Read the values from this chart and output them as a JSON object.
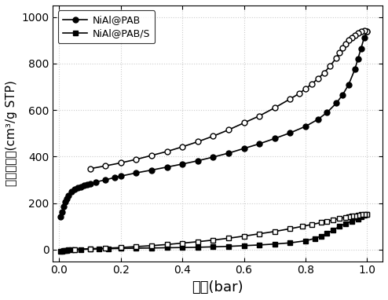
{
  "xlabel": "压力(bar)",
  "ylabel": "氮气吸附量(cm³/g STP)",
  "xlim": [
    -0.02,
    1.05
  ],
  "ylim": [
    -50,
    1050
  ],
  "yticks": [
    0,
    200,
    400,
    600,
    800,
    1000
  ],
  "xticks": [
    0.0,
    0.2,
    0.4,
    0.6,
    0.8,
    1.0
  ],
  "legend1": "NiAl@PAB",
  "legend2": "NiAl@PAB/S",
  "PAB_adsorption_x": [
    0.005,
    0.01,
    0.015,
    0.02,
    0.025,
    0.03,
    0.04,
    0.05,
    0.06,
    0.07,
    0.08,
    0.09,
    0.1,
    0.12,
    0.15,
    0.18,
    0.2,
    0.25,
    0.3,
    0.35,
    0.4,
    0.45,
    0.5,
    0.55,
    0.6,
    0.65,
    0.7,
    0.75,
    0.8,
    0.84,
    0.87,
    0.9,
    0.92,
    0.94,
    0.96,
    0.97,
    0.98,
    0.99,
    1.0
  ],
  "PAB_adsorption_y": [
    140,
    160,
    185,
    207,
    220,
    232,
    248,
    258,
    265,
    270,
    275,
    279,
    283,
    291,
    300,
    310,
    316,
    330,
    342,
    355,
    368,
    382,
    398,
    415,
    435,
    455,
    478,
    502,
    530,
    560,
    590,
    630,
    665,
    710,
    775,
    820,
    865,
    910,
    940
  ],
  "PAB_desorption_x": [
    1.0,
    0.99,
    0.98,
    0.97,
    0.96,
    0.95,
    0.94,
    0.93,
    0.92,
    0.91,
    0.9,
    0.88,
    0.86,
    0.84,
    0.82,
    0.8,
    0.78,
    0.75,
    0.7,
    0.65,
    0.6,
    0.55,
    0.5,
    0.45,
    0.4,
    0.35,
    0.3,
    0.25,
    0.2,
    0.15,
    0.1
  ],
  "PAB_desorption_y": [
    940,
    942,
    938,
    930,
    920,
    910,
    900,
    885,
    868,
    848,
    825,
    790,
    760,
    735,
    712,
    692,
    672,
    648,
    610,
    575,
    545,
    515,
    488,
    464,
    442,
    422,
    405,
    388,
    373,
    360,
    348
  ],
  "PABS_adsorption_x": [
    0.005,
    0.01,
    0.015,
    0.02,
    0.025,
    0.03,
    0.04,
    0.05,
    0.07,
    0.1,
    0.13,
    0.16,
    0.2,
    0.25,
    0.3,
    0.35,
    0.4,
    0.45,
    0.5,
    0.55,
    0.6,
    0.65,
    0.7,
    0.75,
    0.8,
    0.83,
    0.85,
    0.87,
    0.89,
    0.91,
    0.93,
    0.95,
    0.97,
    0.98,
    0.99,
    1.0
  ],
  "PABS_adsorption_y": [
    -8,
    -6,
    -5,
    -4,
    -3,
    -2,
    -1,
    0,
    1,
    2,
    3,
    4,
    5,
    6,
    7,
    8,
    9,
    10,
    12,
    14,
    17,
    20,
    24,
    29,
    38,
    48,
    58,
    70,
    84,
    100,
    112,
    122,
    132,
    140,
    148,
    152
  ],
  "PABS_desorption_x": [
    1.0,
    0.99,
    0.98,
    0.97,
    0.96,
    0.95,
    0.94,
    0.93,
    0.91,
    0.89,
    0.87,
    0.85,
    0.82,
    0.79,
    0.75,
    0.7,
    0.65,
    0.6,
    0.55,
    0.5,
    0.45,
    0.4,
    0.35,
    0.3,
    0.25,
    0.2,
    0.15,
    0.1,
    0.05
  ],
  "PABS_desorption_y": [
    152,
    152,
    150,
    148,
    146,
    144,
    142,
    139,
    134,
    128,
    122,
    116,
    108,
    100,
    90,
    78,
    68,
    58,
    49,
    41,
    34,
    28,
    22,
    17,
    13,
    9,
    6,
    4,
    1
  ],
  "bg_color": "#ffffff",
  "grid_color": "#cccccc",
  "line_color": "black",
  "marker_size": 5,
  "line_width": 1.2
}
